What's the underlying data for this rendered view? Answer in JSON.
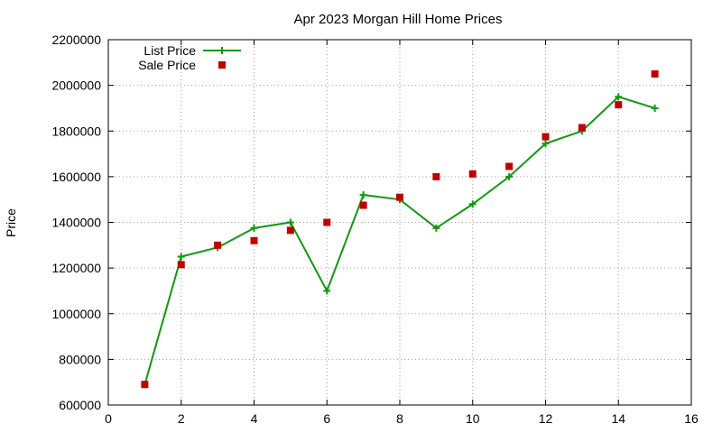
{
  "chart_data": {
    "type": "line",
    "title": "Apr 2023 Morgan Hill Home Prices",
    "xlabel": "",
    "ylabel": "Price",
    "xlim": [
      0,
      16
    ],
    "ylim": [
      600000,
      2200000
    ],
    "x_ticks": [
      0,
      2,
      4,
      6,
      8,
      10,
      12,
      14,
      16
    ],
    "y_ticks": [
      600000,
      800000,
      1000000,
      1200000,
      1400000,
      1600000,
      1800000,
      2000000,
      2200000
    ],
    "grid": true,
    "legend_position": "top-left",
    "series": [
      {
        "name": "List Price",
        "style": "line-plus",
        "color": "#109910",
        "points": [
          [
            1,
            690000
          ],
          [
            2,
            1250000
          ],
          [
            3,
            1290000
          ],
          [
            4,
            1375000
          ],
          [
            5,
            1400000
          ],
          [
            6,
            1100000
          ],
          [
            7,
            1520000
          ],
          [
            8,
            1500000
          ],
          [
            9,
            1375000
          ],
          [
            10,
            1480000
          ],
          [
            11,
            1600000
          ],
          [
            12,
            1745000
          ],
          [
            13,
            1800000
          ],
          [
            14,
            1950000
          ],
          [
            15,
            1900000
          ]
        ]
      },
      {
        "name": "Sale Price",
        "style": "square",
        "color": "#c00000",
        "points": [
          [
            1,
            690000
          ],
          [
            2,
            1215000
          ],
          [
            3,
            1300000
          ],
          [
            4,
            1320000
          ],
          [
            5,
            1365000
          ],
          [
            6,
            1400000
          ],
          [
            7,
            1475000
          ],
          [
            8,
            1510000
          ],
          [
            9,
            1600000
          ],
          [
            10,
            1612000
          ],
          [
            11,
            1645000
          ],
          [
            12,
            1775000
          ],
          [
            13,
            1815000
          ],
          [
            14,
            1915000
          ],
          [
            15,
            2050000
          ]
        ]
      }
    ]
  }
}
